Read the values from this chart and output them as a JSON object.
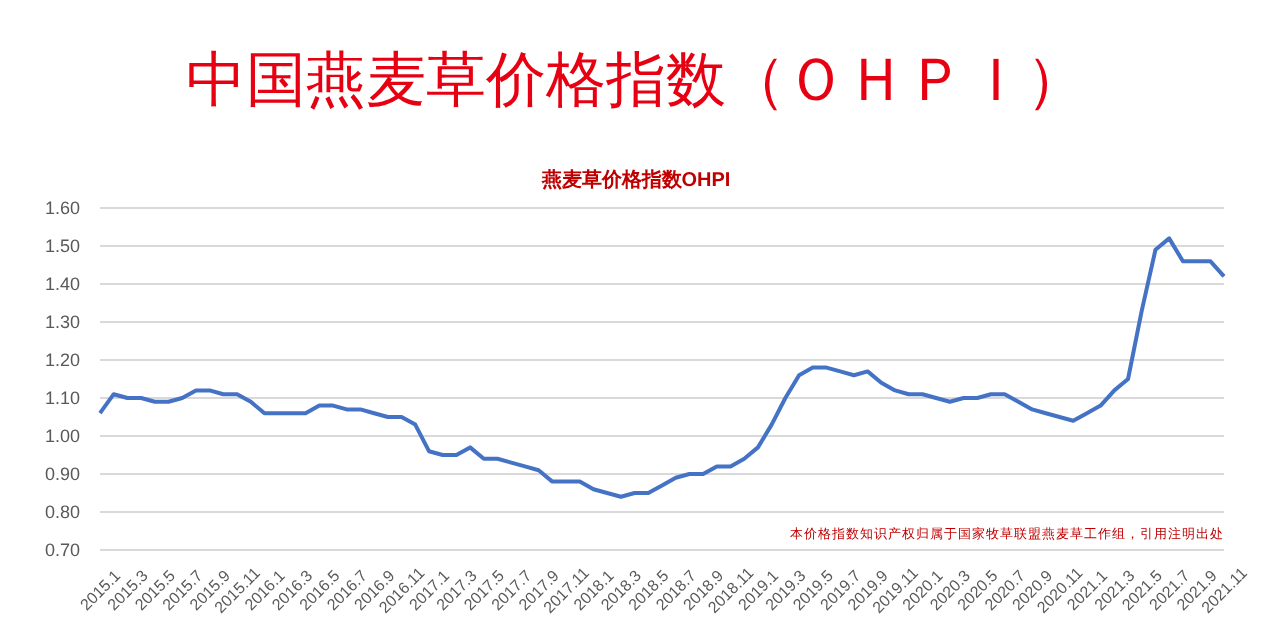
{
  "chart_data": {
    "type": "line",
    "title": "中国燕麦草价格指数（ＯＨＰＩ）",
    "subtitle": "燕麦草价格指数OHPI",
    "categories": [
      "2015.1",
      null,
      "2015.3",
      null,
      "2015.5",
      null,
      "2015.7",
      null,
      "2015.9",
      null,
      "2015.11",
      null,
      "2016.1",
      null,
      "2016.3",
      null,
      "2016.5",
      null,
      "2016.7",
      null,
      "2016.9",
      null,
      "2016.11",
      null,
      "2017.1",
      null,
      "2017.3",
      null,
      "2017.5",
      null,
      "2017.7",
      null,
      "2017.9",
      null,
      "2017.11",
      null,
      "2018.1",
      null,
      "2018.3",
      null,
      "2018.5",
      null,
      "2018.7",
      null,
      "2018.9",
      null,
      "2018.11",
      null,
      "2019.1",
      null,
      "2019.3",
      null,
      "2019.5",
      null,
      "2019.7",
      null,
      "2019.9",
      null,
      "2019.11",
      null,
      "2020.1",
      null,
      "2020.3",
      null,
      "2020.5",
      null,
      "2020.7",
      null,
      "2020.9",
      null,
      "2020.11",
      null,
      "2021.1",
      null,
      "2021.3",
      null,
      "2021.5",
      null,
      "2021.7",
      null,
      "2021.9",
      null,
      "2021.11"
    ],
    "series": [
      {
        "color": "#4472c4",
        "values": [
          1.06,
          1.11,
          1.1,
          1.1,
          1.09,
          1.09,
          1.1,
          1.12,
          1.12,
          1.11,
          1.11,
          1.09,
          1.06,
          1.06,
          1.06,
          1.06,
          1.08,
          1.08,
          1.07,
          1.07,
          1.06,
          1.05,
          1.05,
          1.03,
          0.96,
          0.95,
          0.95,
          0.97,
          0.94,
          0.94,
          0.93,
          0.92,
          0.91,
          0.88,
          0.88,
          0.88,
          0.86,
          0.85,
          0.84,
          0.85,
          0.85,
          0.87,
          0.89,
          0.9,
          0.9,
          0.92,
          0.92,
          0.94,
          0.97,
          1.03,
          1.1,
          1.16,
          1.18,
          1.18,
          1.17,
          1.16,
          1.17,
          1.14,
          1.12,
          1.11,
          1.11,
          1.1,
          1.09,
          1.1,
          1.1,
          1.11,
          1.11,
          1.09,
          1.07,
          1.06,
          1.05,
          1.04,
          1.06,
          1.08,
          1.12,
          1.15,
          1.33,
          1.49,
          1.52,
          1.46,
          1.46,
          1.46,
          1.42
        ]
      }
    ],
    "ylim": [
      0.7,
      1.6
    ],
    "yticks": [
      {
        "value": 0.7,
        "label": "0.70"
      },
      {
        "value": 0.8,
        "label": "0.80"
      },
      {
        "value": 0.9,
        "label": "0.90"
      },
      {
        "value": 1.0,
        "label": "1.00"
      },
      {
        "value": 1.1,
        "label": "1.10"
      },
      {
        "value": 1.2,
        "label": "1.20"
      },
      {
        "value": 1.3,
        "label": "1.30"
      },
      {
        "value": 1.4,
        "label": "1.40"
      },
      {
        "value": 1.5,
        "label": "1.50"
      },
      {
        "value": 1.6,
        "label": "1.60"
      }
    ],
    "grid": "y",
    "marker": "none",
    "line_style": "solid",
    "annotations": [
      "本价格指数知识产权归属于国家牧草联盟燕麦草工作组，引用注明出处"
    ]
  }
}
